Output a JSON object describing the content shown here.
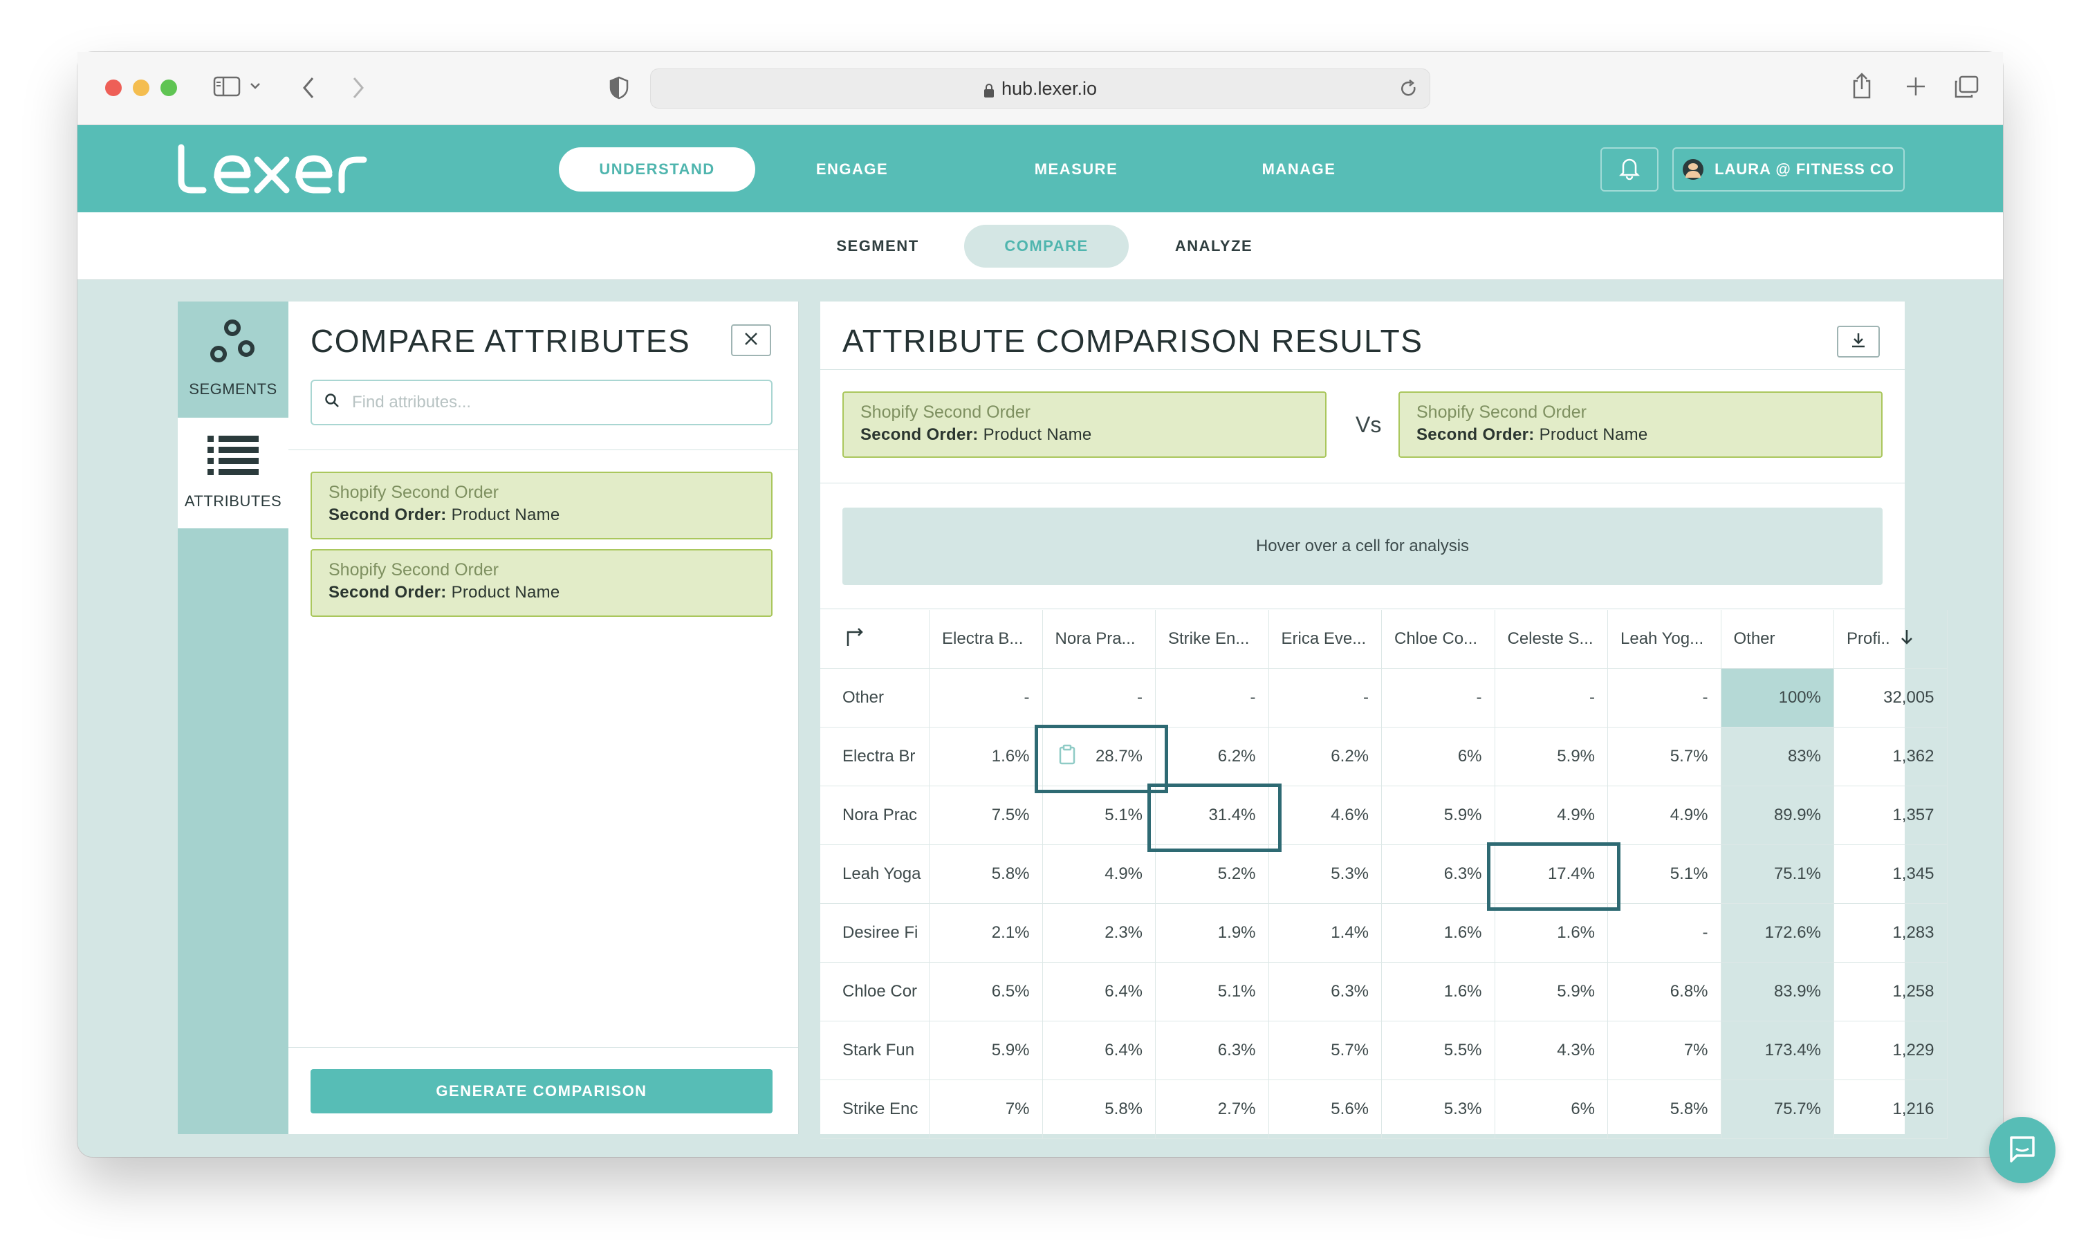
{
  "browser": {
    "url": "hub.lexer.io"
  },
  "header": {
    "logo_text": "lexer",
    "nav": [
      {
        "label": "UNDERSTAND",
        "active": true
      },
      {
        "label": "ENGAGE",
        "active": false
      },
      {
        "label": "MEASURE",
        "active": false
      },
      {
        "label": "MANAGE",
        "active": false
      }
    ],
    "account_label": "LAURA @ FITNESS CO"
  },
  "subnav": [
    {
      "label": "SEGMENT",
      "active": false
    },
    {
      "label": "COMPARE",
      "active": true
    },
    {
      "label": "ANALYZE",
      "active": false
    }
  ],
  "rail": {
    "segments_label": "SEGMENTS",
    "attributes_label": "ATTRIBUTES"
  },
  "compare_panel": {
    "title": "COMPARE ATTRIBUTES",
    "search_placeholder": "Find attributes...",
    "selected": [
      {
        "source": "Shopify Second Order",
        "field_key": "Second Order:",
        "field_value": "Product Name"
      },
      {
        "source": "Shopify Second Order",
        "field_key": "Second Order:",
        "field_value": "Product Name"
      }
    ],
    "generate_label": "GENERATE COMPARISON"
  },
  "results": {
    "title": "ATTRIBUTE COMPARISON RESULTS",
    "left": {
      "source": "Shopify Second Order",
      "field_key": "Second Order:",
      "field_value": "Product Name"
    },
    "vs_label": "Vs",
    "right": {
      "source": "Shopify Second Order",
      "field_key": "Second Order:",
      "field_value": "Product Name"
    },
    "hover_hint": "Hover over a cell for analysis",
    "columns": [
      "Electra B...",
      "Nora Pra...",
      "Strike En...",
      "Erica Eve...",
      "Chloe Co...",
      "Celeste S...",
      "Leah Yog...",
      "Other",
      "Profi.."
    ],
    "rows": [
      {
        "label": "Other",
        "cells": [
          "-",
          "-",
          "-",
          "-",
          "-",
          "-",
          "-",
          "100%",
          "32,005"
        ]
      },
      {
        "label": "Electra Br",
        "cells": [
          "1.6%",
          "28.7%",
          "6.2%",
          "6.2%",
          "6%",
          "5.9%",
          "5.7%",
          "83%",
          "1,362"
        ]
      },
      {
        "label": "Nora Prac",
        "cells": [
          "7.5%",
          "5.1%",
          "31.4%",
          "4.6%",
          "5.9%",
          "4.9%",
          "4.9%",
          "89.9%",
          "1,357"
        ]
      },
      {
        "label": "Leah Yoga",
        "cells": [
          "5.8%",
          "4.9%",
          "5.2%",
          "5.3%",
          "6.3%",
          "17.4%",
          "5.1%",
          "75.1%",
          "1,345"
        ]
      },
      {
        "label": "Desiree Fi",
        "cells": [
          "2.1%",
          "2.3%",
          "1.9%",
          "1.4%",
          "1.6%",
          "1.6%",
          "-",
          "172.6%",
          "1,283"
        ]
      },
      {
        "label": "Chloe Cor",
        "cells": [
          "6.5%",
          "6.4%",
          "5.1%",
          "6.3%",
          "1.6%",
          "5.9%",
          "6.8%",
          "83.9%",
          "1,258"
        ]
      },
      {
        "label": "Stark Fun",
        "cells": [
          "5.9%",
          "6.4%",
          "6.3%",
          "5.7%",
          "5.5%",
          "4.3%",
          "7%",
          "173.4%",
          "1,229"
        ]
      },
      {
        "label": "Strike Enc",
        "cells": [
          "7%",
          "5.8%",
          "2.7%",
          "5.6%",
          "5.3%",
          "6%",
          "5.8%",
          "75.7%",
          "1,216"
        ]
      }
    ]
  },
  "colors": {
    "brand_teal": "#57bdb6",
    "highlight_border": "#2e6a73",
    "chip_bg": "#e2ecc8",
    "chip_border": "#aac75d"
  }
}
